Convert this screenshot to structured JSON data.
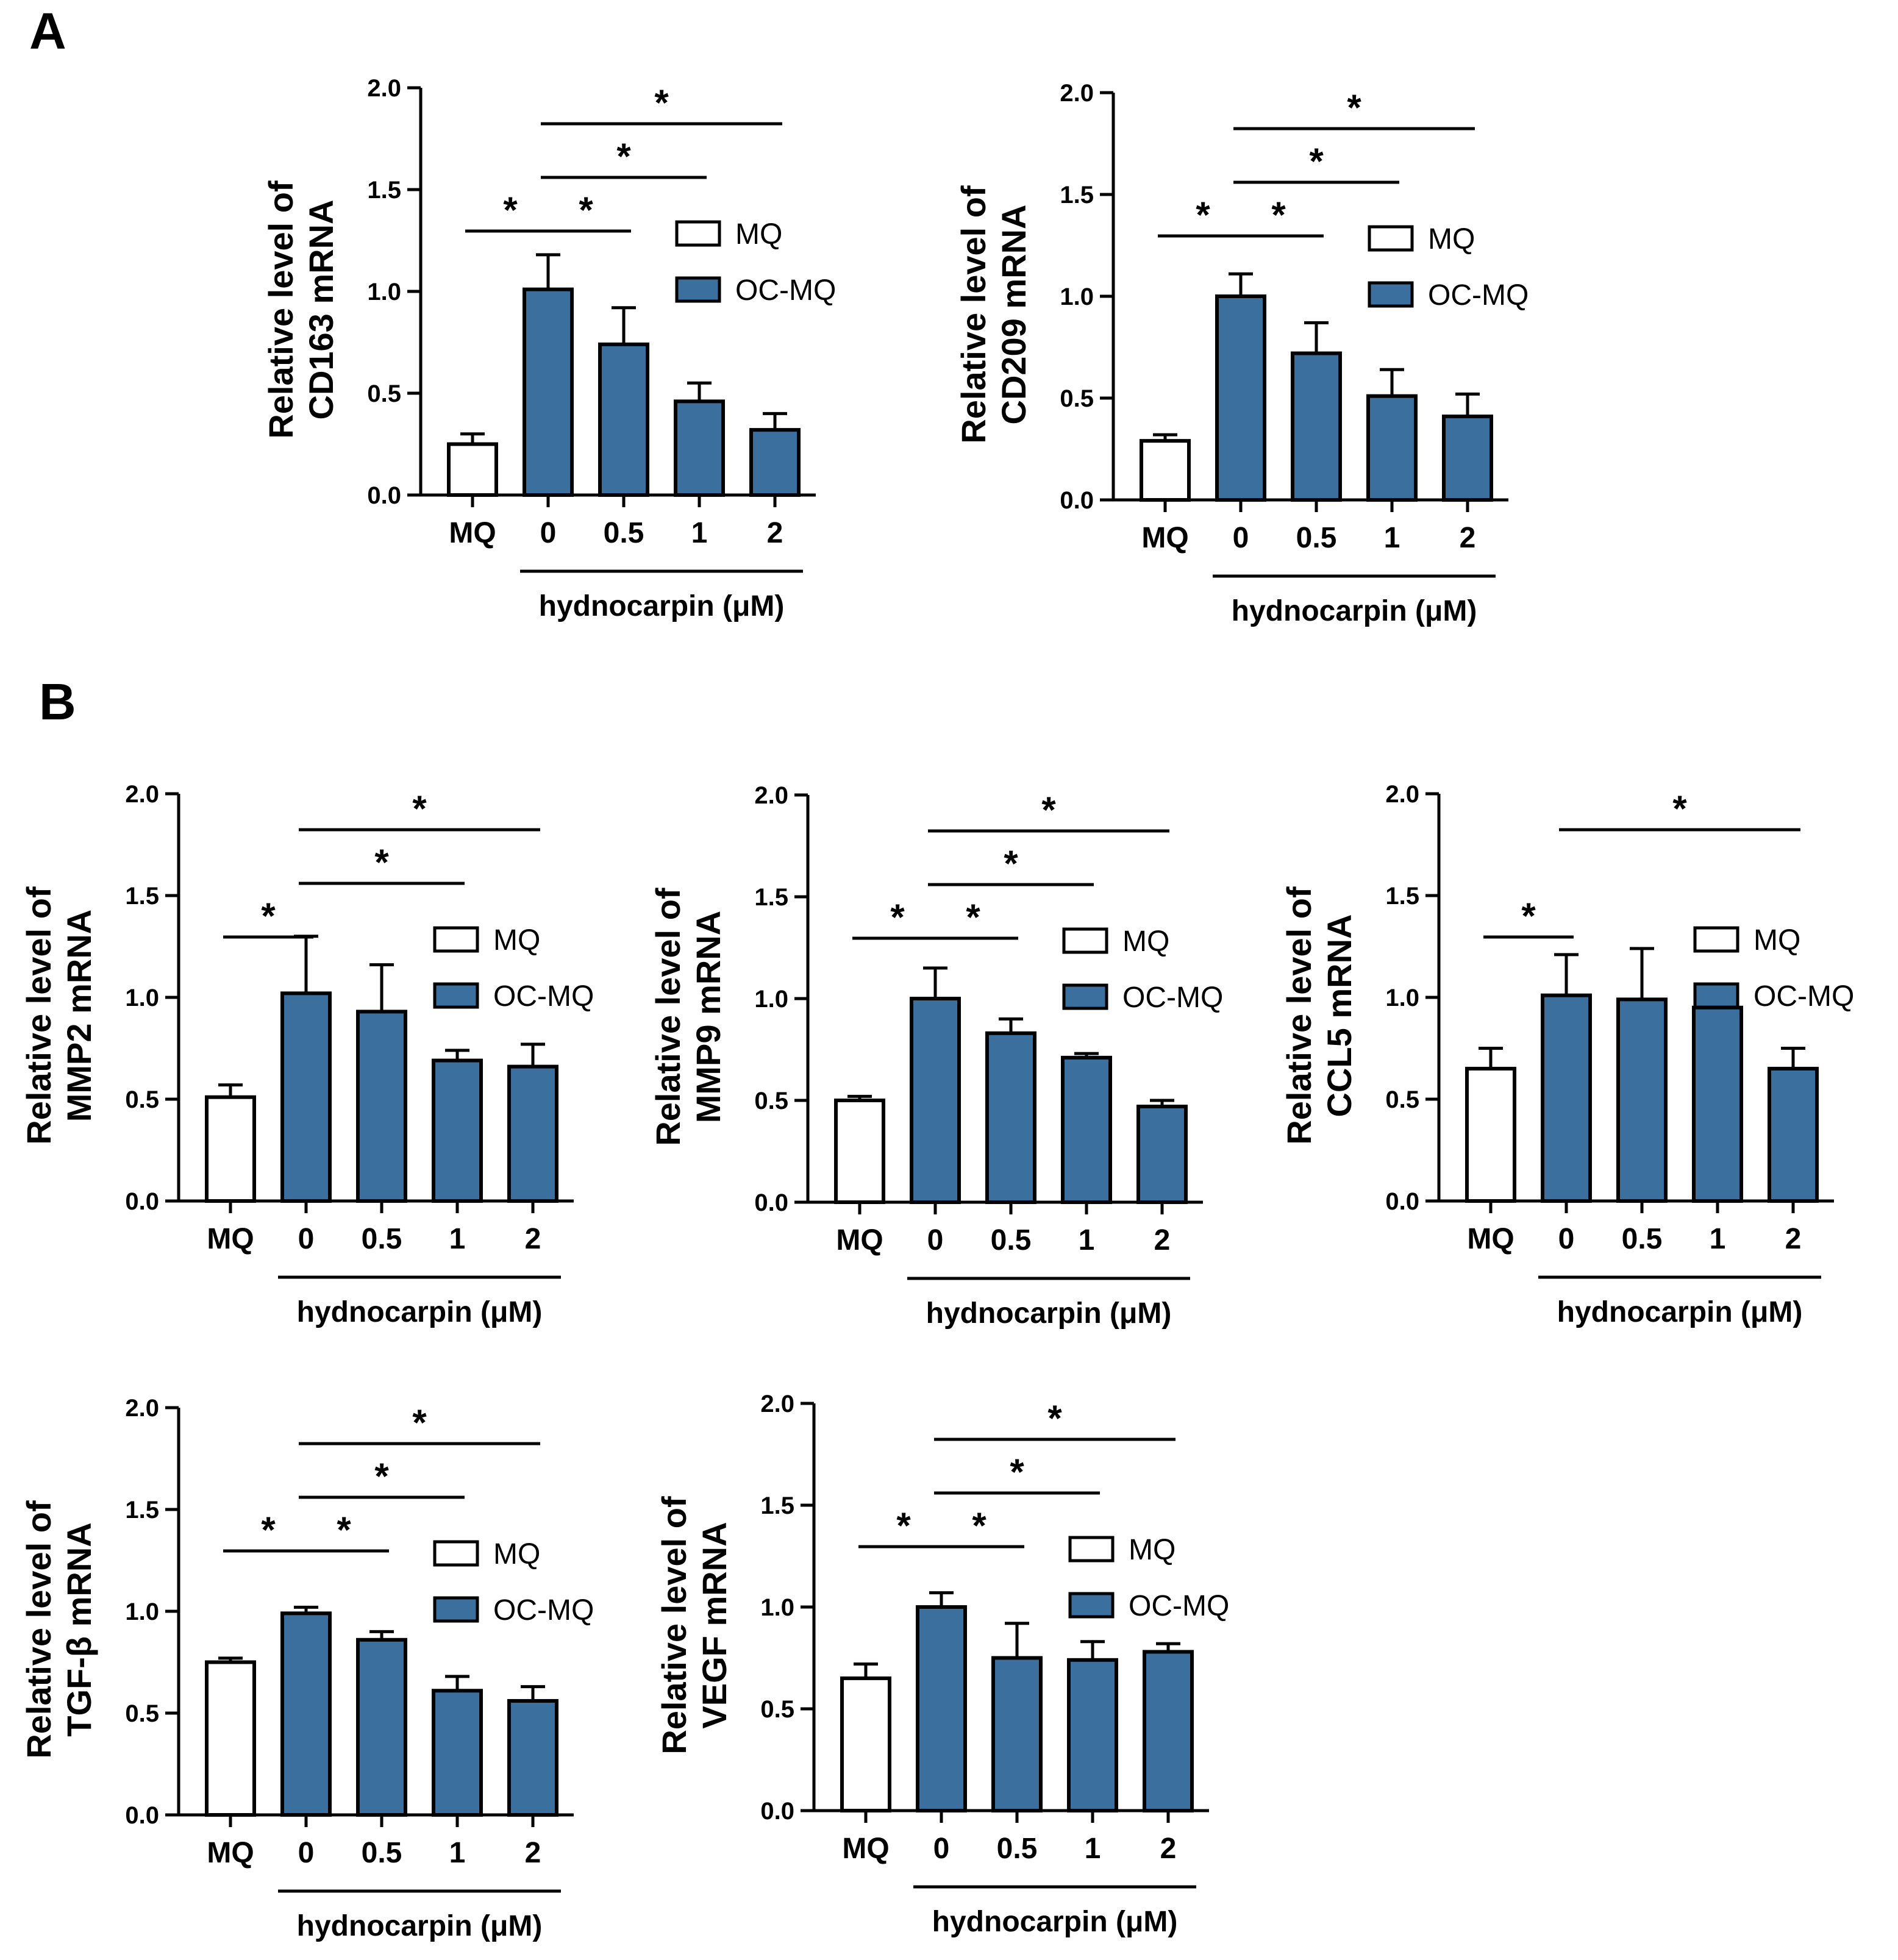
{
  "panel_letters": [
    "A",
    "B"
  ],
  "colors": {
    "mq": "#ffffff",
    "ocmq": "#3a6f9e",
    "stroke": "#000000"
  },
  "chart_data": [
    {
      "type": "bar",
      "panel": "A",
      "title": "",
      "ylabel": [
        "Relative level of",
        "CD163 mRNA"
      ],
      "xlabel": "hydnocarpin (μM)",
      "categories": [
        "MQ",
        "0",
        "0.5",
        "1",
        "2"
      ],
      "groups": [
        "MQ",
        "OC-MQ",
        "OC-MQ",
        "OC-MQ",
        "OC-MQ"
      ],
      "values": [
        0.25,
        1.01,
        0.74,
        0.46,
        0.32
      ],
      "errors": [
        0.05,
        0.17,
        0.18,
        0.09,
        0.08
      ],
      "ylim": [
        0,
        2
      ],
      "yticks": [
        "0.0",
        "0.5",
        "1.0",
        "1.5",
        "2.0"
      ],
      "legend": [
        "MQ",
        "OC-MQ"
      ],
      "significance": [
        {
          "from": 0,
          "to": 1,
          "label": "*"
        },
        {
          "from": 1,
          "to": 2,
          "label": "*"
        },
        {
          "from": 1,
          "to": 3,
          "label": "*"
        },
        {
          "from": 1,
          "to": 4,
          "label": "*"
        }
      ]
    },
    {
      "type": "bar",
      "panel": "A",
      "title": "",
      "ylabel": [
        "Relative level of",
        "CD209 mRNA"
      ],
      "xlabel": "hydnocarpin (μM)",
      "categories": [
        "MQ",
        "0",
        "0.5",
        "1",
        "2"
      ],
      "groups": [
        "MQ",
        "OC-MQ",
        "OC-MQ",
        "OC-MQ",
        "OC-MQ"
      ],
      "values": [
        0.29,
        1.0,
        0.72,
        0.51,
        0.41
      ],
      "errors": [
        0.03,
        0.11,
        0.15,
        0.13,
        0.11
      ],
      "ylim": [
        0,
        2
      ],
      "yticks": [
        "0.0",
        "0.5",
        "1.0",
        "1.5",
        "2.0"
      ],
      "legend": [
        "MQ",
        "OC-MQ"
      ],
      "significance": [
        {
          "from": 0,
          "to": 1,
          "label": "*"
        },
        {
          "from": 1,
          "to": 2,
          "label": "*"
        },
        {
          "from": 1,
          "to": 3,
          "label": "*"
        },
        {
          "from": 1,
          "to": 4,
          "label": "*"
        }
      ]
    },
    {
      "type": "bar",
      "panel": "B",
      "title": "",
      "ylabel": [
        "Relative level of",
        "MMP2 mRNA"
      ],
      "xlabel": "hydnocarpin (μM)",
      "categories": [
        "MQ",
        "0",
        "0.5",
        "1",
        "2"
      ],
      "groups": [
        "MQ",
        "OC-MQ",
        "OC-MQ",
        "OC-MQ",
        "OC-MQ"
      ],
      "values": [
        0.51,
        1.02,
        0.93,
        0.69,
        0.66
      ],
      "errors": [
        0.06,
        0.28,
        0.23,
        0.05,
        0.11
      ],
      "ylim": [
        0,
        2
      ],
      "yticks": [
        "0.0",
        "0.5",
        "1.0",
        "1.5",
        "2.0"
      ],
      "legend": [
        "MQ",
        "OC-MQ"
      ],
      "significance": [
        {
          "from": 0,
          "to": 1,
          "label": "*"
        },
        {
          "from": 1,
          "to": 3,
          "label": "*"
        },
        {
          "from": 1,
          "to": 4,
          "label": "*"
        }
      ]
    },
    {
      "type": "bar",
      "panel": "B",
      "title": "",
      "ylabel": [
        "Relative level of",
        "MMP9 mRNA"
      ],
      "xlabel": "hydnocarpin (μM)",
      "categories": [
        "MQ",
        "0",
        "0.5",
        "1",
        "2"
      ],
      "groups": [
        "MQ",
        "OC-MQ",
        "OC-MQ",
        "OC-MQ",
        "OC-MQ"
      ],
      "values": [
        0.5,
        1.0,
        0.83,
        0.71,
        0.47
      ],
      "errors": [
        0.02,
        0.15,
        0.07,
        0.02,
        0.03
      ],
      "ylim": [
        0,
        2
      ],
      "yticks": [
        "0.0",
        "0.5",
        "1.0",
        "1.5",
        "2.0"
      ],
      "legend": [
        "MQ",
        "OC-MQ"
      ],
      "significance": [
        {
          "from": 0,
          "to": 1,
          "label": "*"
        },
        {
          "from": 1,
          "to": 2,
          "label": "*"
        },
        {
          "from": 1,
          "to": 3,
          "label": "*"
        },
        {
          "from": 1,
          "to": 4,
          "label": "*"
        }
      ]
    },
    {
      "type": "bar",
      "panel": "B",
      "title": "",
      "ylabel": [
        "Relative level of",
        "CCL5 mRNA"
      ],
      "xlabel": "hydnocarpin (μM)",
      "categories": [
        "MQ",
        "0",
        "0.5",
        "1",
        "2"
      ],
      "groups": [
        "MQ",
        "OC-MQ",
        "OC-MQ",
        "OC-MQ",
        "OC-MQ"
      ],
      "values": [
        0.65,
        1.01,
        0.99,
        0.95,
        0.65
      ],
      "errors": [
        0.1,
        0.2,
        0.25,
        0.09,
        0.1
      ],
      "ylim": [
        0,
        2
      ],
      "yticks": [
        "0.0",
        "0.5",
        "1.0",
        "1.5",
        "2.0"
      ],
      "legend": [
        "MQ",
        "OC-MQ"
      ],
      "significance": [
        {
          "from": 0,
          "to": 1,
          "label": "*"
        },
        {
          "from": 1,
          "to": 4,
          "label": "*"
        }
      ]
    },
    {
      "type": "bar",
      "panel": "B",
      "title": "",
      "ylabel": [
        "Relative level of",
        "TGF-β mRNA"
      ],
      "xlabel": "hydnocarpin (μM)",
      "categories": [
        "MQ",
        "0",
        "0.5",
        "1",
        "2"
      ],
      "groups": [
        "MQ",
        "OC-MQ",
        "OC-MQ",
        "OC-MQ",
        "OC-MQ"
      ],
      "values": [
        0.75,
        0.99,
        0.86,
        0.61,
        0.56
      ],
      "errors": [
        0.02,
        0.03,
        0.04,
        0.07,
        0.07
      ],
      "ylim": [
        0,
        2
      ],
      "yticks": [
        "0.0",
        "0.5",
        "1.0",
        "1.5",
        "2.0"
      ],
      "legend": [
        "MQ",
        "OC-MQ"
      ],
      "significance": [
        {
          "from": 0,
          "to": 1,
          "label": "*"
        },
        {
          "from": 1,
          "to": 2,
          "label": "*"
        },
        {
          "from": 1,
          "to": 3,
          "label": "*"
        },
        {
          "from": 1,
          "to": 4,
          "label": "*"
        }
      ]
    },
    {
      "type": "bar",
      "panel": "B",
      "title": "",
      "ylabel": [
        "Relative level of",
        "VEGF mRNA"
      ],
      "xlabel": "hydnocarpin (μM)",
      "categories": [
        "MQ",
        "0",
        "0.5",
        "1",
        "2"
      ],
      "groups": [
        "MQ",
        "OC-MQ",
        "OC-MQ",
        "OC-MQ",
        "OC-MQ"
      ],
      "values": [
        0.65,
        1.0,
        0.75,
        0.74,
        0.78
      ],
      "errors": [
        0.07,
        0.07,
        0.17,
        0.09,
        0.04
      ],
      "ylim": [
        0,
        2
      ],
      "yticks": [
        "0.0",
        "0.5",
        "1.0",
        "1.5",
        "2.0"
      ],
      "legend": [
        "MQ",
        "OC-MQ"
      ],
      "significance": [
        {
          "from": 0,
          "to": 1,
          "label": "*"
        },
        {
          "from": 1,
          "to": 2,
          "label": "*"
        },
        {
          "from": 1,
          "to": 3,
          "label": "*"
        },
        {
          "from": 1,
          "to": 4,
          "label": "*"
        }
      ]
    }
  ]
}
